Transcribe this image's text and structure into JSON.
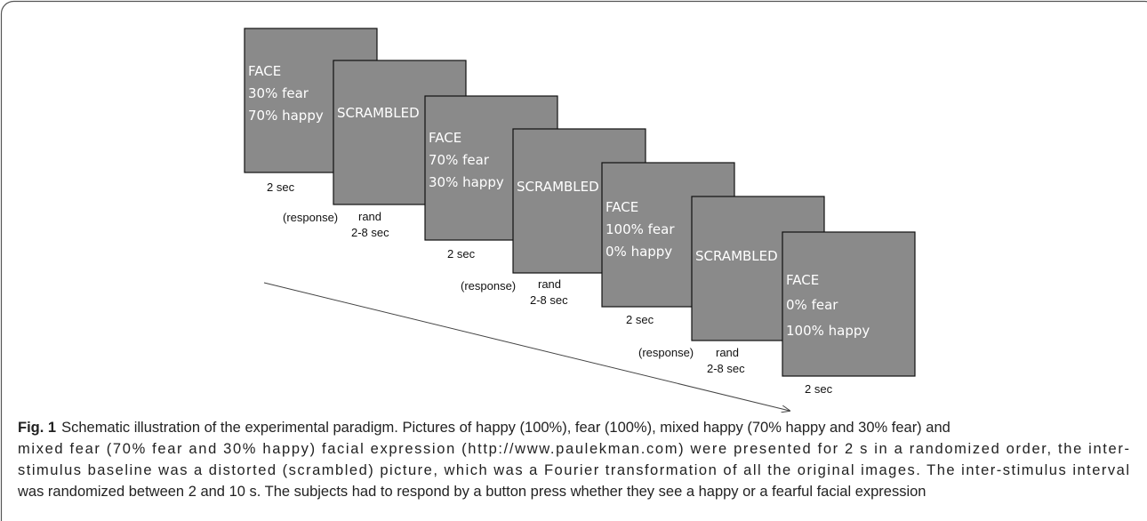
{
  "figure": {
    "slides": [
      {
        "lines": [
          "FACE",
          "30% fear",
          "70% happy"
        ]
      },
      {
        "lines": [
          "SCRAMBLED"
        ]
      },
      {
        "lines": [
          "FACE",
          "70% fear",
          "30% happy"
        ]
      },
      {
        "lines": [
          "SCRAMBLED"
        ]
      },
      {
        "lines": [
          "FACE",
          "100% fear",
          "0% happy"
        ]
      },
      {
        "lines": [
          "SCRAMBLED"
        ]
      },
      {
        "lines": [
          "FACE",
          "0% fear",
          "100% happy"
        ]
      }
    ],
    "timings": [
      {
        "duration": "2 sec",
        "response": "(response)",
        "rand": "rand",
        "interval": "2-8 sec"
      },
      {
        "duration": "2 sec",
        "response": "(response)",
        "rand": "rand",
        "interval": "2-8 sec"
      },
      {
        "duration": "2 sec",
        "response": "(response)",
        "rand": "rand",
        "interval": "2-8 sec"
      },
      {
        "duration": "2 sec"
      }
    ]
  },
  "caption": {
    "label": "Fig. 1",
    "lines": [
      "Schematic illustration of the experimental paradigm. Pictures of happy (100%), fear (100%), mixed happy (70% happy and 30% fear) and",
      "mixed fear (70% fear and 30% happy) facial expression (http://www.paulekman.com) were presented for 2 s in a randomized order, the inter-",
      "stimulus baseline was a distorted (scrambled) picture, which was a Fourier transformation of all the original images. The inter-stimulus interval",
      "was randomized between 2 and 10 s. The subjects had to respond by a button press whether they see a happy or a fearful facial expression"
    ]
  }
}
